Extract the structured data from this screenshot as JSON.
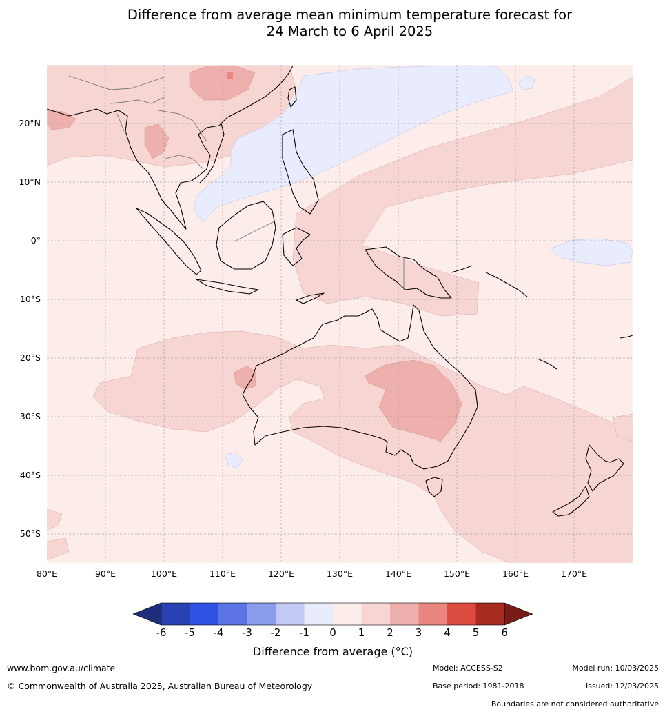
{
  "title": {
    "line1": "Difference from average mean minimum temperature forecast for",
    "line2": "24 March to 6 April 2025"
  },
  "map": {
    "lon_range": [
      80,
      180
    ],
    "lat_range": [
      -55,
      30
    ],
    "lon_ticks": [
      "80°E",
      "90°E",
      "100°E",
      "110°E",
      "120°E",
      "130°E",
      "140°E",
      "150°E",
      "160°E",
      "170°E"
    ],
    "lat_ticks": [
      "20°N",
      "10°N",
      "0°",
      "10°S",
      "20°S",
      "30°S",
      "40°S",
      "50°S"
    ],
    "background_category": "0 to 1",
    "gridlines": true
  },
  "colorbar": {
    "ticks": [
      "-6",
      "-5",
      "-4",
      "-3",
      "-2",
      "-1",
      "0",
      "1",
      "2",
      "3",
      "4",
      "5",
      "6"
    ],
    "colors": [
      "#1f2e7a",
      "#2a41b4",
      "#3052e2",
      "#5c74e6",
      "#8b9cec",
      "#c2c9f5",
      "#e8ecfc",
      "#fcecea",
      "#f6d5d2",
      "#eeb0ac",
      "#e8867f",
      "#dc4b40",
      "#a82b22",
      "#781c18"
    ],
    "label": "Difference from average (°C)"
  },
  "footer": {
    "website": "www.bom.gov.au/climate",
    "copyright": "© Commonwealth of Australia 2025, Australian Bureau of Meteorology",
    "model": "Model: ACCESS-S2",
    "base_period": "Base period: 1981-2018",
    "model_run": "Model run: 10/03/2025",
    "issued": "Issued: 12/03/2025",
    "disclaimer": "Boundaries are not considered authoritative"
  }
}
